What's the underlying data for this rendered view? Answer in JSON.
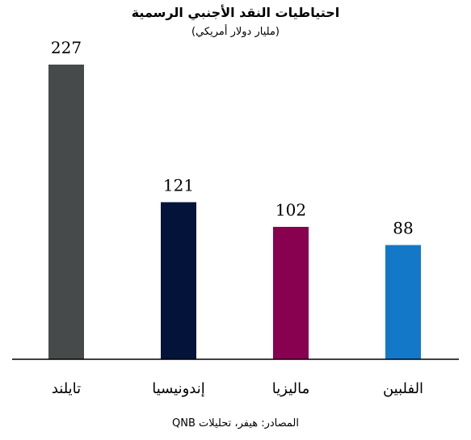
{
  "chart_data": {
    "type": "bar",
    "title": "احتياطيات النقد الأجنبي الرسمية",
    "subtitle": "(مليار دولار أمريكي)",
    "categories": [
      "تايلند",
      "إندونيسيا",
      "ماليزيا",
      "الفلبين"
    ],
    "values": [
      227,
      121,
      102,
      88
    ],
    "colors": [
      "#464a4a",
      "#03133a",
      "#880050",
      "#1478c8"
    ],
    "xlabel": "",
    "ylabel": "",
    "ylim": [
      0,
      227
    ],
    "grid": false,
    "legend": "none",
    "source": "المصادر: هيفر، تحليلات QNB"
  }
}
